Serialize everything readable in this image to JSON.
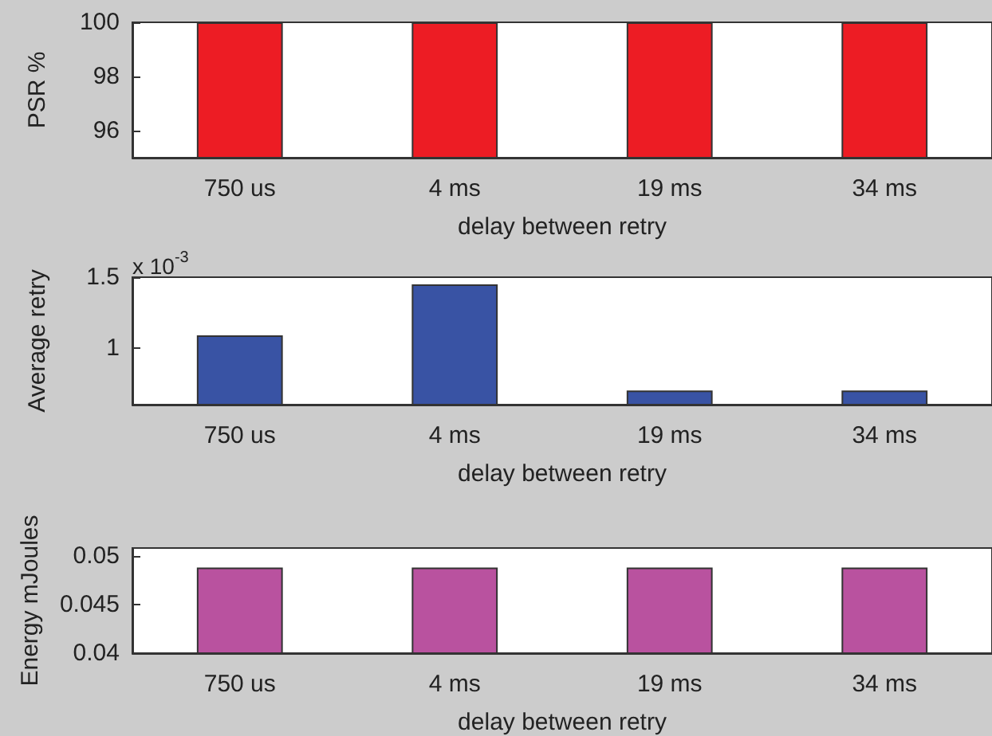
{
  "chart_data": [
    {
      "type": "bar",
      "categories": [
        "750 us",
        "4 ms",
        "19 ms",
        "34 ms"
      ],
      "values": [
        100,
        100,
        100,
        100
      ],
      "color": "#ed1c24",
      "xlabel": "delay between retry",
      "ylabel": "PSR %",
      "ylim": [
        95,
        100
      ],
      "yticks": [
        96,
        98,
        100
      ],
      "grid": false
    },
    {
      "type": "bar",
      "categories": [
        "750 us",
        "4 ms",
        "19 ms",
        "34 ms"
      ],
      "values": [
        1.09,
        1.45,
        0.7,
        0.7
      ],
      "color": "#3953a4",
      "xlabel": "delay between retry",
      "ylabel": "Average retry",
      "ylim": [
        0.6,
        1.5
      ],
      "yticks": [
        1,
        1.5
      ],
      "grid": false,
      "annotations": [
        "x 10$^{-3}$"
      ]
    },
    {
      "type": "bar",
      "categories": [
        "750 us",
        "4 ms",
        "19 ms",
        "34 ms"
      ],
      "values": [
        0.0488,
        0.0488,
        0.0488,
        0.0488
      ],
      "color": "#b9529f",
      "xlabel": "delay between retry",
      "ylabel": "Energy mJoules",
      "ylim": [
        0.04,
        0.0508
      ],
      "yticks": [
        0.04,
        0.045,
        0.05
      ],
      "grid": false
    }
  ]
}
